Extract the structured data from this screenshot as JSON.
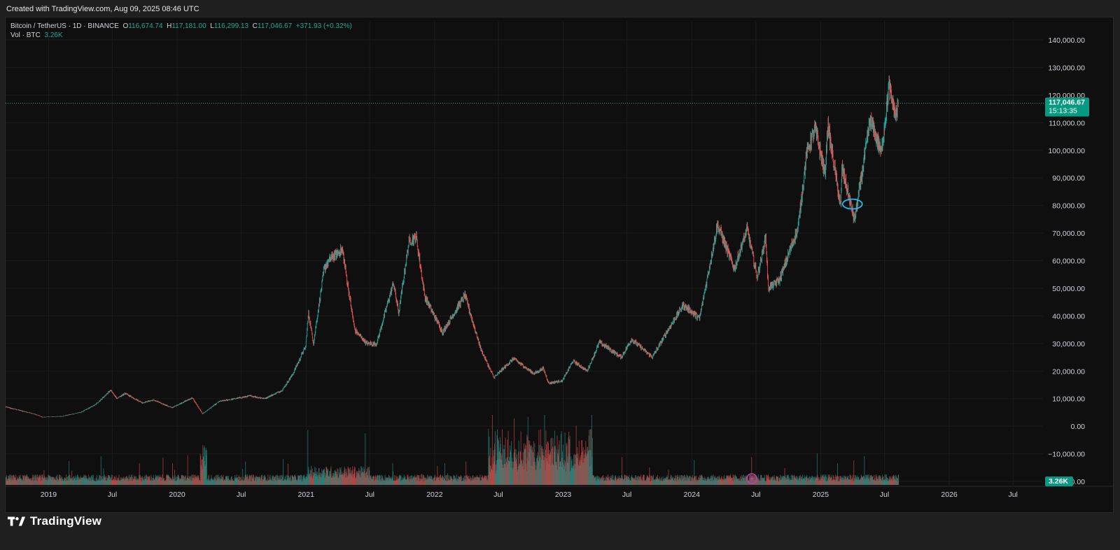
{
  "header": {
    "created_text": "Created with TradingView.com, Aug 09, 2025 08:46 UTC"
  },
  "legend": {
    "symbol": "Bitcoin / TetherUS · 1D · BINANCE",
    "o_label": "O",
    "o_value": "116,674.74",
    "h_label": "H",
    "h_value": "117,181.00",
    "l_label": "L",
    "l_value": "116,299.13",
    "c_label": "C",
    "c_value": "117,046.67",
    "change": "+371.93 (+0.32%)",
    "vol_label": "Vol · BTC",
    "vol_value": "3.26K"
  },
  "price_badge": {
    "price": "117,046.67",
    "countdown": "15:13:35",
    "color": "#089981"
  },
  "volume_badge": {
    "value": "3.26K",
    "color": "#089981"
  },
  "footer": {
    "brand": "TradingView"
  },
  "colors": {
    "up": "#26a69a",
    "down": "#ef5350",
    "grid": "#1c1c1c",
    "annotation": "#29b6f6",
    "flash": "#ab47bc"
  },
  "chart_data": {
    "type": "candlestick",
    "symbol": "BTCUSDT",
    "interval": "1D",
    "exchange": "BINANCE",
    "y_ticks": [
      "140,000.00",
      "130,000.00",
      "120,000.00",
      "110,000.00",
      "100,000.00",
      "90,000.00",
      "80,000.00",
      "70,000.00",
      "60,000.00",
      "50,000.00",
      "40,000.00",
      "30,000.00",
      "20,000.00",
      "10,000.00",
      "0.00",
      "−10,000.00",
      "−20,000.00"
    ],
    "y_tick_values": [
      140000,
      130000,
      120000,
      110000,
      100000,
      90000,
      80000,
      70000,
      60000,
      50000,
      40000,
      30000,
      20000,
      10000,
      0,
      -10000,
      -20000
    ],
    "ylim": [
      -20000,
      140000
    ],
    "x_ticks": [
      {
        "label": "2019",
        "date": "2019-01-01"
      },
      {
        "label": "Jul",
        "date": "2019-07-01"
      },
      {
        "label": "2020",
        "date": "2020-01-01"
      },
      {
        "label": "Jul",
        "date": "2020-07-01"
      },
      {
        "label": "2021",
        "date": "2021-01-01"
      },
      {
        "label": "Jul",
        "date": "2021-07-01"
      },
      {
        "label": "2022",
        "date": "2022-01-01"
      },
      {
        "label": "Jul",
        "date": "2022-07-01"
      },
      {
        "label": "2023",
        "date": "2023-01-01"
      },
      {
        "label": "Jul",
        "date": "2023-07-01"
      },
      {
        "label": "2024",
        "date": "2024-01-01"
      },
      {
        "label": "Jul",
        "date": "2024-07-01"
      },
      {
        "label": "2025",
        "date": "2025-01-01"
      },
      {
        "label": "Jul",
        "date": "2025-07-01"
      },
      {
        "label": "2026",
        "date": "2026-01-01"
      },
      {
        "label": "Jul",
        "date": "2026-07-01"
      }
    ],
    "xlim": [
      "2018-09-01",
      "2026-10-14"
    ],
    "last_price": 117046.67,
    "price_path": [
      [
        "2018-09-01",
        7000
      ],
      [
        "2018-11-20",
        4500
      ],
      [
        "2018-12-15",
        3300
      ],
      [
        "2019-02-08",
        3600
      ],
      [
        "2019-04-02",
        5000
      ],
      [
        "2019-05-14",
        7800
      ],
      [
        "2019-06-26",
        13000
      ],
      [
        "2019-07-15",
        10000
      ],
      [
        "2019-08-06",
        11900
      ],
      [
        "2019-09-24",
        8500
      ],
      [
        "2019-10-26",
        9500
      ],
      [
        "2019-12-17",
        6700
      ],
      [
        "2020-02-13",
        10300
      ],
      [
        "2020-03-13",
        4500
      ],
      [
        "2020-04-30",
        9000
      ],
      [
        "2020-06-01",
        9700
      ],
      [
        "2020-07-27",
        11000
      ],
      [
        "2020-09-05",
        10000
      ],
      [
        "2020-10-25",
        13000
      ],
      [
        "2020-11-25",
        19000
      ],
      [
        "2020-12-31",
        29000
      ],
      [
        "2021-01-08",
        41000
      ],
      [
        "2021-01-22",
        30000
      ],
      [
        "2021-02-21",
        57000
      ],
      [
        "2021-03-13",
        61000
      ],
      [
        "2021-04-14",
        64000
      ],
      [
        "2021-05-19",
        35000
      ],
      [
        "2021-06-22",
        30000
      ],
      [
        "2021-07-20",
        29800
      ],
      [
        "2021-09-06",
        52000
      ],
      [
        "2021-09-21",
        41000
      ],
      [
        "2021-10-20",
        67000
      ],
      [
        "2021-11-10",
        68500
      ],
      [
        "2021-12-04",
        47000
      ],
      [
        "2022-01-24",
        34000
      ],
      [
        "2022-03-28",
        47500
      ],
      [
        "2022-05-12",
        28000
      ],
      [
        "2022-06-18",
        17600
      ],
      [
        "2022-08-13",
        24500
      ],
      [
        "2022-10-10",
        19000
      ],
      [
        "2022-11-05",
        21000
      ],
      [
        "2022-11-21",
        15600
      ],
      [
        "2022-12-30",
        16500
      ],
      [
        "2023-01-29",
        23700
      ],
      [
        "2023-03-10",
        20000
      ],
      [
        "2023-04-14",
        30500
      ],
      [
        "2023-06-15",
        25000
      ],
      [
        "2023-07-14",
        31500
      ],
      [
        "2023-09-11",
        25000
      ],
      [
        "2023-10-24",
        34500
      ],
      [
        "2023-12-08",
        44000
      ],
      [
        "2024-01-23",
        39000
      ],
      [
        "2024-03-14",
        73000
      ],
      [
        "2024-05-01",
        57000
      ],
      [
        "2024-06-06",
        71500
      ],
      [
        "2024-07-05",
        54000
      ],
      [
        "2024-07-29",
        69000
      ],
      [
        "2024-08-05",
        50000
      ],
      [
        "2024-09-06",
        53000
      ],
      [
        "2024-10-29",
        72000
      ],
      [
        "2024-11-22",
        99000
      ],
      [
        "2024-12-17",
        108000
      ],
      [
        "2025-01-13",
        91000
      ],
      [
        "2025-01-21",
        109000
      ],
      [
        "2025-02-27",
        79000
      ],
      [
        "2025-03-02",
        94000
      ],
      [
        "2025-04-07",
        74500
      ],
      [
        "2025-05-22",
        111000
      ],
      [
        "2025-06-22",
        99000
      ],
      [
        "2025-07-14",
        123000
      ],
      [
        "2025-08-02",
        112000
      ],
      [
        "2025-08-09",
        117046.67
      ]
    ],
    "volume_ylim": [
      0,
      60000
    ],
    "volume_note": "Volume histogram at bottom; spikes in Mar 2020, 2021, and Jun 2022 – Mar 2023",
    "annotation": {
      "type": "ellipse",
      "center_date": "2025-04-01",
      "center_price": 80000,
      "color": "#29b6f6"
    }
  }
}
